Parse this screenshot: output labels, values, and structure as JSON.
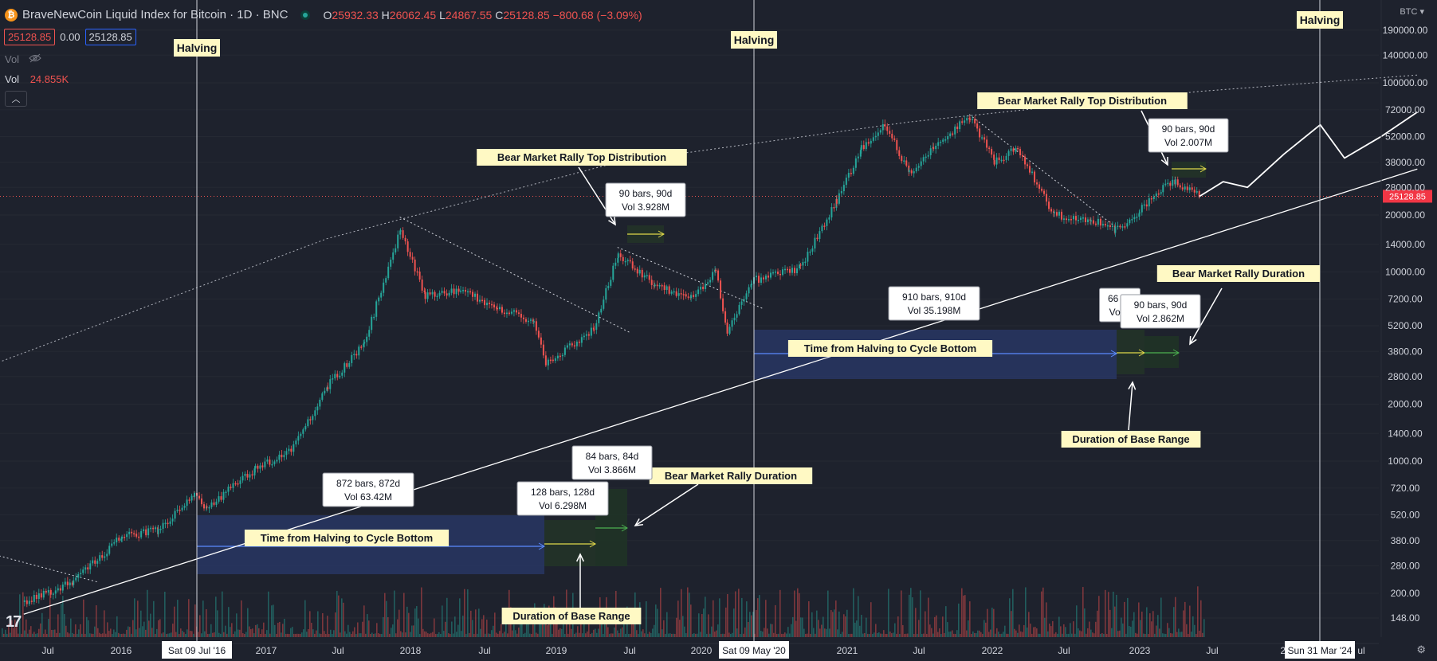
{
  "header": {
    "coin_icon": "bitcoin-icon",
    "symbol_title": "BraveNewCoin Liquid Index for Bitcoin · 1D · BNC",
    "status": "market-open-dot",
    "ohlc": [
      {
        "key": "O",
        "value": "25932.33"
      },
      {
        "key": "H",
        "value": "26062.45"
      },
      {
        "key": "L",
        "value": "24867.55"
      },
      {
        "key": "C",
        "value": "25128.85"
      }
    ],
    "change": "−800.68 (−3.09%)",
    "sell_price": "25128.85",
    "spread": "0.00",
    "buy_price": "25128.85",
    "vol_hidden_label": "Vol",
    "vol_label": "Vol",
    "vol_value": "24.855K",
    "currency": "BTC",
    "colors": {
      "up": "#26a69a",
      "down": "#ef5350",
      "background": "#1e222d",
      "accent": "#2962ff"
    }
  },
  "chart_data": {
    "type": "candlestick",
    "title": "BraveNewCoin Liquid Index for Bitcoin · 1D · BNC",
    "y_scale": "log",
    "y_ticks": [
      "148.00",
      "200.00",
      "280.00",
      "380.00",
      "520.00",
      "720.00",
      "1000.00",
      "1400.00",
      "2000.00",
      "2800.00",
      "3800.00",
      "5200.00",
      "7200.00",
      "10000.00",
      "14000.00",
      "20000.00",
      "28000.00",
      "38000.00",
      "52000.00",
      "72000.00",
      "100000.00",
      "140000.00",
      "190000.00"
    ],
    "last_price": "25128.85",
    "x_ticks": [
      "Jul",
      "2016",
      "2017",
      "Jul",
      "2018",
      "Jul",
      "2019",
      "Jul",
      "2020",
      "2021",
      "Jul",
      "2022",
      "Jul",
      "2023",
      "Jul",
      "20",
      "ul"
    ],
    "cursor_dates": [
      "Sat 09 Jul '16",
      "Sat 09 May '20",
      "Sun 31 Mar '24"
    ],
    "price_path": [
      {
        "date": "2015-05",
        "price": 180
      },
      {
        "date": "2015-09",
        "price": 230
      },
      {
        "date": "2016-01",
        "price": 400
      },
      {
        "date": "2016-04",
        "price": 430
      },
      {
        "date": "2016-07",
        "price": 650
      },
      {
        "date": "2016-08",
        "price": 570
      },
      {
        "date": "2016-12",
        "price": 900
      },
      {
        "date": "2017-03",
        "price": 1150
      },
      {
        "date": "2017-06",
        "price": 2500
      },
      {
        "date": "2017-09",
        "price": 4200
      },
      {
        "date": "2017-12",
        "price": 17000
      },
      {
        "date": "2018-02",
        "price": 7500
      },
      {
        "date": "2018-05",
        "price": 8000
      },
      {
        "date": "2018-08",
        "price": 6500
      },
      {
        "date": "2018-11",
        "price": 5500
      },
      {
        "date": "2018-12",
        "price": 3300
      },
      {
        "date": "2019-04",
        "price": 5000
      },
      {
        "date": "2019-06",
        "price": 12500
      },
      {
        "date": "2019-09",
        "price": 8500
      },
      {
        "date": "2019-12",
        "price": 7200
      },
      {
        "date": "2020-02",
        "price": 10000
      },
      {
        "date": "2020-03",
        "price": 4900
      },
      {
        "date": "2020-05",
        "price": 9000
      },
      {
        "date": "2020-09",
        "price": 10500
      },
      {
        "date": "2020-12",
        "price": 24000
      },
      {
        "date": "2021-02",
        "price": 45000
      },
      {
        "date": "2021-04",
        "price": 61000
      },
      {
        "date": "2021-06",
        "price": 33000
      },
      {
        "date": "2021-08",
        "price": 45000
      },
      {
        "date": "2021-11",
        "price": 67000
      },
      {
        "date": "2022-01",
        "price": 38000
      },
      {
        "date": "2022-03",
        "price": 45000
      },
      {
        "date": "2022-06",
        "price": 20000
      },
      {
        "date": "2022-09",
        "price": 19000
      },
      {
        "date": "2022-11",
        "price": 16500
      },
      {
        "date": "2023-01",
        "price": 21000
      },
      {
        "date": "2023-03",
        "price": 28000
      },
      {
        "date": "2023-04",
        "price": 30000
      },
      {
        "date": "2023-06",
        "price": 25128.85
      }
    ],
    "projection_path": [
      {
        "date": "2023-06",
        "price": 25000
      },
      {
        "date": "2023-08",
        "price": 30000
      },
      {
        "date": "2023-10",
        "price": 28000
      },
      {
        "date": "2024-01",
        "price": 42000
      },
      {
        "date": "2024-04",
        "price": 60000
      },
      {
        "date": "2024-06",
        "price": 40000
      },
      {
        "date": "2024-09",
        "price": 52000
      },
      {
        "date": "2024-12",
        "price": 70000
      }
    ],
    "halvings": [
      {
        "label": "Halving",
        "date": "2016-07-09"
      },
      {
        "label": "Halving",
        "date": "2020-05-09"
      },
      {
        "label": "Halving",
        "date": "2024-03-31"
      }
    ],
    "trendline": {
      "from": {
        "date": "2015-05",
        "price": 155
      },
      "to": {
        "date": "2024-12",
        "price": 35000
      }
    },
    "upper_curve": [
      {
        "date": "2015-01",
        "price": 3000
      },
      {
        "date": "2017-06",
        "price": 15000
      },
      {
        "date": "2019-06",
        "price": 38000
      },
      {
        "date": "2021-06",
        "price": 62000
      },
      {
        "date": "2023-06",
        "price": 90000
      },
      {
        "date": "2024-12",
        "price": 110000
      }
    ],
    "annotations": [
      {
        "text": "Bear Market Rally Top Distribution",
        "date": "2019-01",
        "price": 39000
      },
      {
        "text": "Bear Market Rally Top Distribution",
        "date": "2022-07",
        "price": 80000
      },
      {
        "text": "Time from Halving to Cycle Bottom",
        "date": "2017-06",
        "price": 350
      },
      {
        "text": "Time from Halving to Cycle Bottom",
        "date": "2021-05",
        "price": 4000
      },
      {
        "text": "Duration of Base Range",
        "date": "2019-01",
        "price": 145
      },
      {
        "text": "Duration of Base Range",
        "date": "2022-11",
        "price": 1600
      },
      {
        "text": "Bear Market Rally Duration",
        "date": "2020-01",
        "price": 880
      },
      {
        "text": "Bear Market Rally Duration",
        "date": "2023-12",
        "price": 9000
      }
    ],
    "measure_labels": [
      {
        "line1": "90 bars, 90d",
        "line2": "Vol 3.928M"
      },
      {
        "line1": "872 bars, 872d",
        "line2": "Vol 63.42M"
      },
      {
        "line1": "84 bars, 84d",
        "line2": "Vol 3.866M"
      },
      {
        "line1": "128 bars, 128d",
        "line2": "Vol 6.298M"
      },
      {
        "line1": "910 bars, 910d",
        "line2": "Vol 35.198M"
      },
      {
        "line1": "66 ba",
        "line2": "Vol 2"
      },
      {
        "line1": "90 bars, 90d",
        "line2": "Vol 2.862M"
      },
      {
        "line1": "90 bars, 90d",
        "line2": "Vol 2.007M"
      }
    ]
  }
}
